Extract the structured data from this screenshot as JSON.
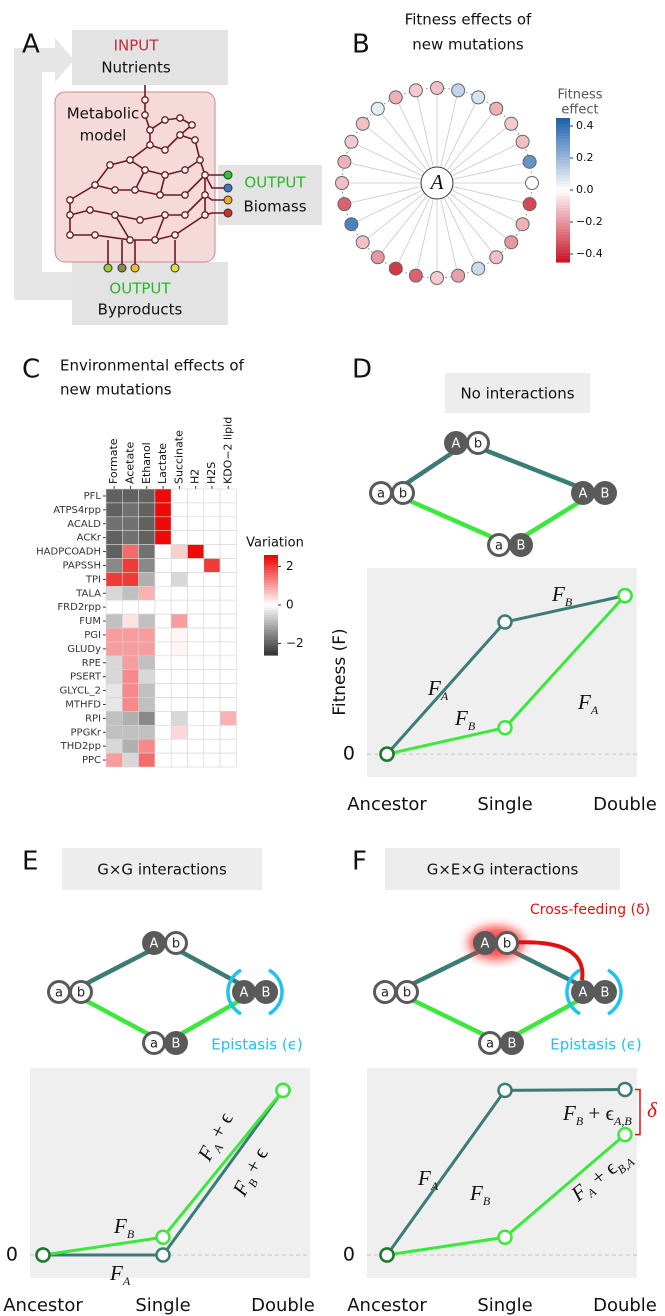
{
  "panel_labels": [
    "A",
    "B",
    "C",
    "D",
    "E",
    "F"
  ],
  "diagram_a": {
    "input_label": "INPUT",
    "input_text": "Nutrients",
    "model_lines": [
      "Metabolic",
      "model"
    ],
    "biomass_label": "OUTPUT",
    "biomass_text": "Biomass",
    "byproducts_label": "OUTPUT",
    "byproducts_text": "Byproducts"
  },
  "genotypes": {
    "ancestor": [
      "a",
      "b"
    ],
    "single_a": [
      "A",
      "b"
    ],
    "single_b": [
      "a",
      "B"
    ],
    "double": [
      "A",
      "B"
    ]
  },
  "chart_data": [
    {
      "type": "radial",
      "title": [
        "Fitness effects of",
        "new mutations"
      ],
      "center_label": "A",
      "colorbar_title": [
        "Fitness",
        "effect"
      ],
      "values": [
        -0.12,
        0.12,
        0.08,
        -0.15,
        -0.1,
        -0.12,
        0.3,
        0.0,
        -0.35,
        -0.15,
        -0.2,
        -0.12,
        0.1,
        -0.18,
        -0.1,
        -0.3,
        -0.38,
        -0.2,
        -0.12,
        0.35,
        -0.3,
        -0.12,
        -0.15,
        -0.1,
        -0.12,
        0.05,
        -0.15,
        -0.1
      ],
      "clim": [
        -0.45,
        0.45
      ],
      "cticks": [
        0.4,
        0.2,
        {
          "value": 0,
          "label": "0.0"
        },
        {
          "value": -0.2,
          "label": "−0.2"
        },
        {
          "value": -0.4,
          "label": "−0.4"
        }
      ]
    },
    {
      "type": "heatmap",
      "title": [
        "Environmental effects of",
        "new mutations"
      ],
      "colorbar_title": "Variation",
      "columns": [
        "Formate",
        "Acetate",
        "Ethanol",
        "Lactate",
        "Succinate",
        "H2",
        "H2S",
        "KDO−2 lipid"
      ],
      "rows": [
        "PFL",
        "ATPS4rpp",
        "ACALD",
        "ACKr",
        "HADPCOADH",
        "PAPSSH",
        "TPI",
        "TALA",
        "FRD2rpp",
        "FUM",
        "PGI",
        "GLUDy",
        "RPE",
        "PSERT",
        "GLYCL_2",
        "MTHFD",
        "RPI",
        "PPGKr",
        "THD2pp",
        "PPC"
      ],
      "values": [
        [
          -2,
          -2,
          -2,
          2.5,
          0,
          0,
          0,
          0
        ],
        [
          -2,
          -1.8,
          -2,
          2.5,
          0,
          0,
          0,
          0
        ],
        [
          -1.8,
          -1.8,
          -2,
          2.5,
          0,
          0,
          0,
          0
        ],
        [
          -2,
          -1.8,
          -2,
          2.5,
          0,
          0,
          0,
          0
        ],
        [
          -2,
          1.5,
          -1.8,
          0,
          0.5,
          2.5,
          0,
          0
        ],
        [
          -1.5,
          2,
          -1.5,
          0,
          0,
          0,
          2,
          0
        ],
        [
          2,
          2,
          -1,
          0,
          -0.5,
          0,
          0,
          0
        ],
        [
          -0.5,
          -0.8,
          0.8,
          0,
          0,
          0,
          0,
          0
        ],
        [
          0,
          0,
          0,
          0,
          0,
          0,
          0,
          0
        ],
        [
          -0.8,
          0.3,
          -0.8,
          0,
          1,
          0,
          0,
          0
        ],
        [
          1,
          1,
          1,
          0,
          0.1,
          0,
          0,
          0
        ],
        [
          1,
          1,
          1,
          0,
          0.1,
          0,
          0,
          0
        ],
        [
          -0.5,
          1,
          -0.8,
          0,
          0,
          0,
          0,
          0
        ],
        [
          -0.5,
          1.2,
          -0.5,
          0,
          0,
          0,
          0,
          0
        ],
        [
          -0.3,
          1.2,
          -0.8,
          0,
          0,
          0,
          0,
          0
        ],
        [
          -0.3,
          1.2,
          -0.8,
          0,
          0,
          0,
          0,
          0
        ],
        [
          -0.8,
          -1,
          -1.5,
          0,
          -0.5,
          0,
          0,
          0.8
        ],
        [
          -0.8,
          -0.8,
          -0.8,
          0,
          0.4,
          0,
          0,
          0
        ],
        [
          -0.5,
          -1,
          1.2,
          0,
          0,
          0,
          0,
          0
        ],
        [
          1,
          -0.5,
          1.5,
          0,
          0,
          0,
          0,
          0
        ]
      ],
      "clim": [
        -2.6,
        2.6
      ],
      "cticks": [
        2,
        0,
        {
          "value": -2,
          "label": "−2"
        }
      ]
    },
    {
      "type": "line",
      "title": "No interactions",
      "ylabel": "Fitness (F)",
      "categories": [
        "Ancestor",
        "Single",
        "Double"
      ],
      "series": [
        {
          "color": "#3b7c76",
          "values": [
            0,
            0.75,
            0.9
          ],
          "segment_labels": [
            [
              "F",
              "A"
            ],
            [
              "F",
              "B"
            ]
          ]
        },
        {
          "color": "#3de83d",
          "values": [
            0,
            0.15,
            0.9
          ],
          "segment_labels": [
            [
              "F",
              "B"
            ],
            [
              "F",
              "A"
            ]
          ]
        }
      ],
      "ylim": [
        -0.13,
        1.0
      ],
      "yticks": [
        0
      ],
      "grid": true
    },
    {
      "type": "line",
      "title": "G×G interactions",
      "epistasis_label": "Epistasis (ϵ)",
      "categories": [
        "Ancestor",
        "Single",
        "Double"
      ],
      "series": [
        {
          "color": "#3b7c76",
          "values": [
            0,
            0.0,
            0.93
          ],
          "segment_labels": [
            [
              "F",
              "A"
            ],
            [
              "F",
              "B",
              " + ϵ"
            ]
          ]
        },
        {
          "color": "#3de83d",
          "values": [
            0,
            0.1,
            0.93
          ],
          "segment_labels": [
            [
              "F",
              "B"
            ],
            [
              "F",
              "A",
              " + ϵ"
            ]
          ]
        }
      ],
      "ylim": [
        -0.13,
        1.0
      ],
      "yticks": [
        0
      ],
      "grid": true
    },
    {
      "type": "line",
      "title": "G×E×G interactions",
      "epistasis_label": "Epistasis (ϵ)",
      "crossfeeding_label": "Cross-feeding (δ)",
      "delta_label": "δ",
      "categories": [
        "Ancestor",
        "Single",
        "Double"
      ],
      "series": [
        {
          "color": "#3b7c76",
          "values": [
            0,
            0.93,
            0.935
          ],
          "segment_labels": [
            [
              "F",
              "A"
            ],
            [
              "F",
              "B",
              " + ϵ",
              "A,B"
            ]
          ]
        },
        {
          "color": "#3de83d",
          "values": [
            0,
            0.1,
            0.68
          ],
          "segment_labels": [
            [
              "F",
              "B"
            ],
            [
              "F",
              "A",
              " + ϵ",
              "B,A"
            ]
          ]
        }
      ],
      "ylim": [
        -0.13,
        1.0
      ],
      "yticks": [
        0
      ],
      "grid": true
    }
  ]
}
